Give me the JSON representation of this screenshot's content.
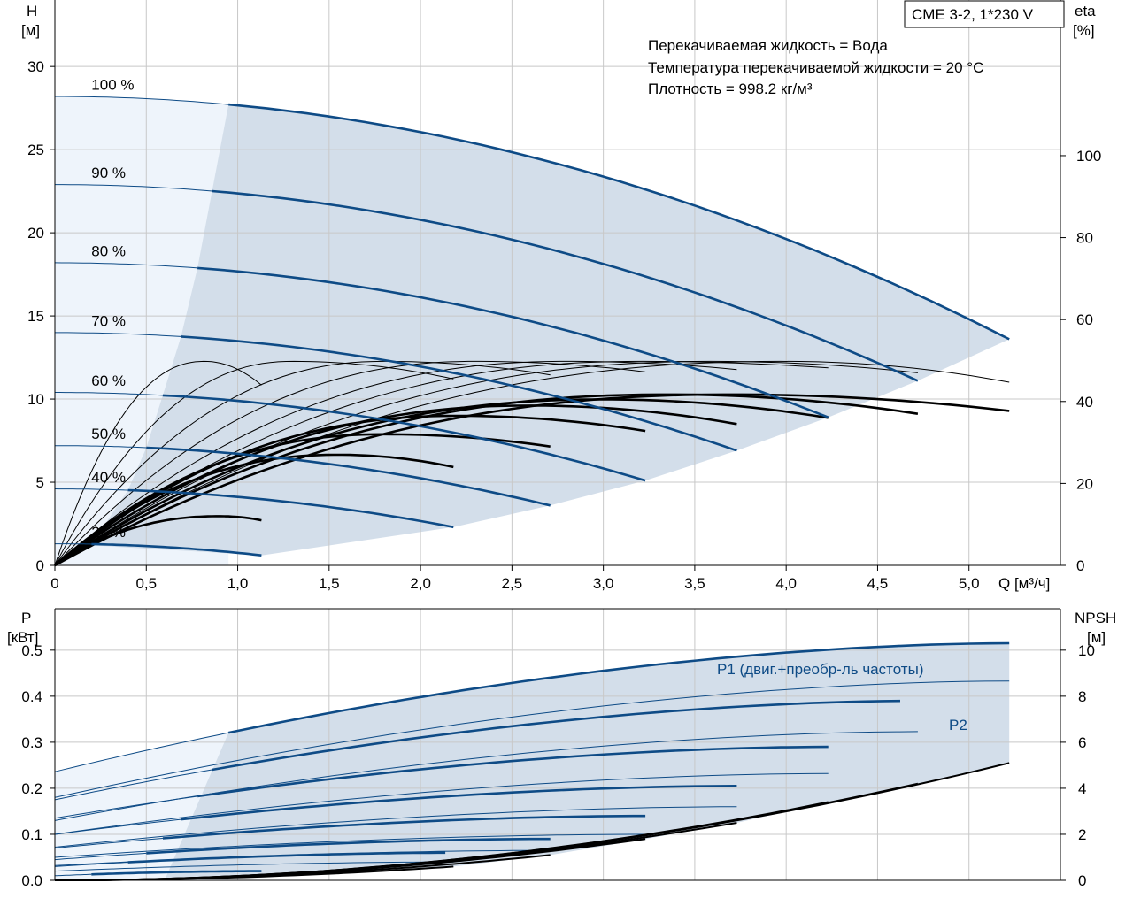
{
  "model_label": "CME 3-2, 1*230 V",
  "info_lines": [
    "Перекачиваемая жидкость = Вода",
    "Температура перекачиваемой жидкости = 20 °C",
    "Плотность = 998.2 кг/м³"
  ],
  "colors": {
    "head_curve": "#0e4b86",
    "eta_curve": "#000000",
    "region_main": "#d3deea",
    "region_light": "#eef4fb",
    "grid": "#c8c8c8"
  },
  "chart_data": [
    {
      "type": "line",
      "panel": "top",
      "x_axis": {
        "label": "Q [м³/ч]",
        "range": [
          0,
          5.5
        ],
        "ticks": [
          "0",
          "0,5",
          "1,0",
          "1,5",
          "2,0",
          "2,5",
          "3,0",
          "3,5",
          "4,0",
          "4,5",
          "5,0"
        ]
      },
      "y_left": {
        "label_line1": "H",
        "label_line2": "[м]",
        "range": [
          0,
          34
        ],
        "ticks": [
          "0",
          "5",
          "10",
          "15",
          "20",
          "25",
          "30"
        ]
      },
      "y_right": {
        "label_line1": "eta",
        "label_line2": "[%]",
        "range": [
          0,
          138
        ],
        "ticks": [
          "0",
          "20",
          "40",
          "60",
          "80",
          "100"
        ]
      },
      "speeds": [
        {
          "label": "100 %",
          "pct": 100,
          "h0": 28.2,
          "qmax": 5.22,
          "hend": 13.6,
          "qrec": 0.95
        },
        {
          "label": "90 %",
          "pct": 90,
          "h0": 22.9,
          "qmax": 4.72,
          "hend": 11.1,
          "qrec": 0.86
        },
        {
          "label": "80 %",
          "pct": 80,
          "h0": 18.2,
          "qmax": 4.23,
          "hend": 8.9,
          "qrec": 0.78
        },
        {
          "label": "70 %",
          "pct": 70,
          "h0": 14.0,
          "qmax": 3.73,
          "hend": 6.9,
          "qrec": 0.69
        },
        {
          "label": "60 %",
          "pct": 60,
          "h0": 10.4,
          "qmax": 3.23,
          "hend": 5.1,
          "qrec": 0.59
        },
        {
          "label": "50 %",
          "pct": 50,
          "h0": 7.2,
          "qmax": 2.71,
          "hend": 3.6,
          "qrec": 0.5
        },
        {
          "label": "40 %",
          "pct": 40,
          "h0": 4.6,
          "qmax": 2.18,
          "hend": 2.3,
          "qrec": 0.4
        },
        {
          "label": "21 %",
          "pct": 21,
          "h0": 1.3,
          "qmax": 1.13,
          "hend": 0.6,
          "qrec": 0.2
        }
      ],
      "eta_curves": [
        {
          "qpeak": 3.7,
          "peak": 41.7,
          "qend": 5.22,
          "eend": 37.7
        },
        {
          "qpeak": 3.35,
          "peak": 41.7,
          "qend": 4.72,
          "eend": 37.0
        },
        {
          "qpeak": 3.0,
          "peak": 40.5,
          "qend": 4.23,
          "eend": 36.0
        },
        {
          "qpeak": 2.6,
          "peak": 39.0,
          "qend": 3.73,
          "eend": 34.5
        },
        {
          "qpeak": 2.2,
          "peak": 36.5,
          "qend": 3.23,
          "eend": 32.8
        },
        {
          "qpeak": 1.8,
          "peak": 32.0,
          "qend": 2.71,
          "eend": 29.0
        },
        {
          "qpeak": 1.55,
          "peak": 27.0,
          "qend": 2.18,
          "eend": 24.0
        },
        {
          "qpeak": 0.9,
          "peak": 12.0,
          "qend": 1.13,
          "eend": 11.0
        }
      ],
      "max_eta_envelope": [
        {
          "q": 0.82,
          "eta": 49.8,
          "qend": 1.13,
          "eend": 44.0
        },
        {
          "q": 1.3,
          "eta": 49.8,
          "qend": 2.18,
          "eend": 45.5
        },
        {
          "q": 1.8,
          "eta": 49.8,
          "qend": 2.71,
          "eend": 46.5
        },
        {
          "q": 2.3,
          "eta": 49.8,
          "qend": 3.23,
          "eend": 47.2
        },
        {
          "q": 2.8,
          "eta": 49.8,
          "qend": 3.73,
          "eend": 47.8
        },
        {
          "q": 3.2,
          "eta": 49.8,
          "qend": 4.23,
          "eend": 48.2
        },
        {
          "q": 3.6,
          "eta": 49.8,
          "qend": 4.72,
          "eend": 47.0
        },
        {
          "q": 4.0,
          "eta": 49.8,
          "qend": 5.22,
          "eend": 44.7
        }
      ]
    },
    {
      "type": "line",
      "panel": "bottom",
      "x_axis": {
        "range": [
          0,
          5.5
        ]
      },
      "y_left": {
        "label_line1": "P",
        "label_line2": "[кВт]",
        "range": [
          0,
          0.59
        ],
        "ticks": [
          "0.0",
          "0.1",
          "0.2",
          "0.3",
          "0.4",
          "0.5"
        ]
      },
      "y_right": {
        "label_line1": "NPSH",
        "label_line2": "[м]",
        "range": [
          0,
          11.8
        ],
        "ticks": [
          "0",
          "2",
          "4",
          "6",
          "8",
          "10"
        ]
      },
      "series_labels": {
        "p1": "P1 (двиг.+преобр-ль частоты)",
        "p2": "P2"
      },
      "p1_curves": [
        {
          "p0": 0.236,
          "pend": 0.515,
          "qmax": 5.22
        },
        {
          "p0": 0.175,
          "pend": 0.39,
          "qmax": 4.72
        },
        {
          "p0": 0.135,
          "pend": 0.29,
          "qmax": 4.23
        },
        {
          "p0": 0.1,
          "pend": 0.205,
          "qmax": 3.73
        },
        {
          "p0": 0.07,
          "pend": 0.14,
          "qmax": 3.23
        },
        {
          "p0": 0.045,
          "pend": 0.09,
          "qmax": 2.71
        },
        {
          "p0": 0.03,
          "pend": 0.06,
          "qmax": 2.18
        },
        {
          "p0": 0.01,
          "pend": 0.02,
          "qmax": 1.13
        }
      ],
      "p2_curves": [
        {
          "p0": 0.18,
          "pend": 0.433,
          "qmax": 5.22
        },
        {
          "p0": 0.13,
          "pend": 0.323,
          "qmax": 4.72
        },
        {
          "p0": 0.1,
          "pend": 0.232,
          "qmax": 4.23
        },
        {
          "p0": 0.072,
          "pend": 0.16,
          "qmax": 3.73
        },
        {
          "p0": 0.05,
          "pend": 0.1,
          "qmax": 3.23
        },
        {
          "p0": 0.032,
          "pend": 0.065,
          "qmax": 2.71
        },
        {
          "p0": 0.02,
          "pend": 0.04,
          "qmax": 2.18
        }
      ],
      "npsh_curves": [
        {
          "qmax": 5.22,
          "nend": 5.1
        },
        {
          "qmax": 4.72,
          "nend": 4.2
        },
        {
          "qmax": 4.23,
          "nend": 3.4
        },
        {
          "qmax": 3.73,
          "nend": 2.5
        },
        {
          "qmax": 3.23,
          "nend": 1.8
        },
        {
          "qmax": 2.71,
          "nend": 1.1
        },
        {
          "qmax": 2.18,
          "nend": 0.6
        },
        {
          "qmax": 1.13,
          "nend": 0.2
        }
      ]
    }
  ]
}
